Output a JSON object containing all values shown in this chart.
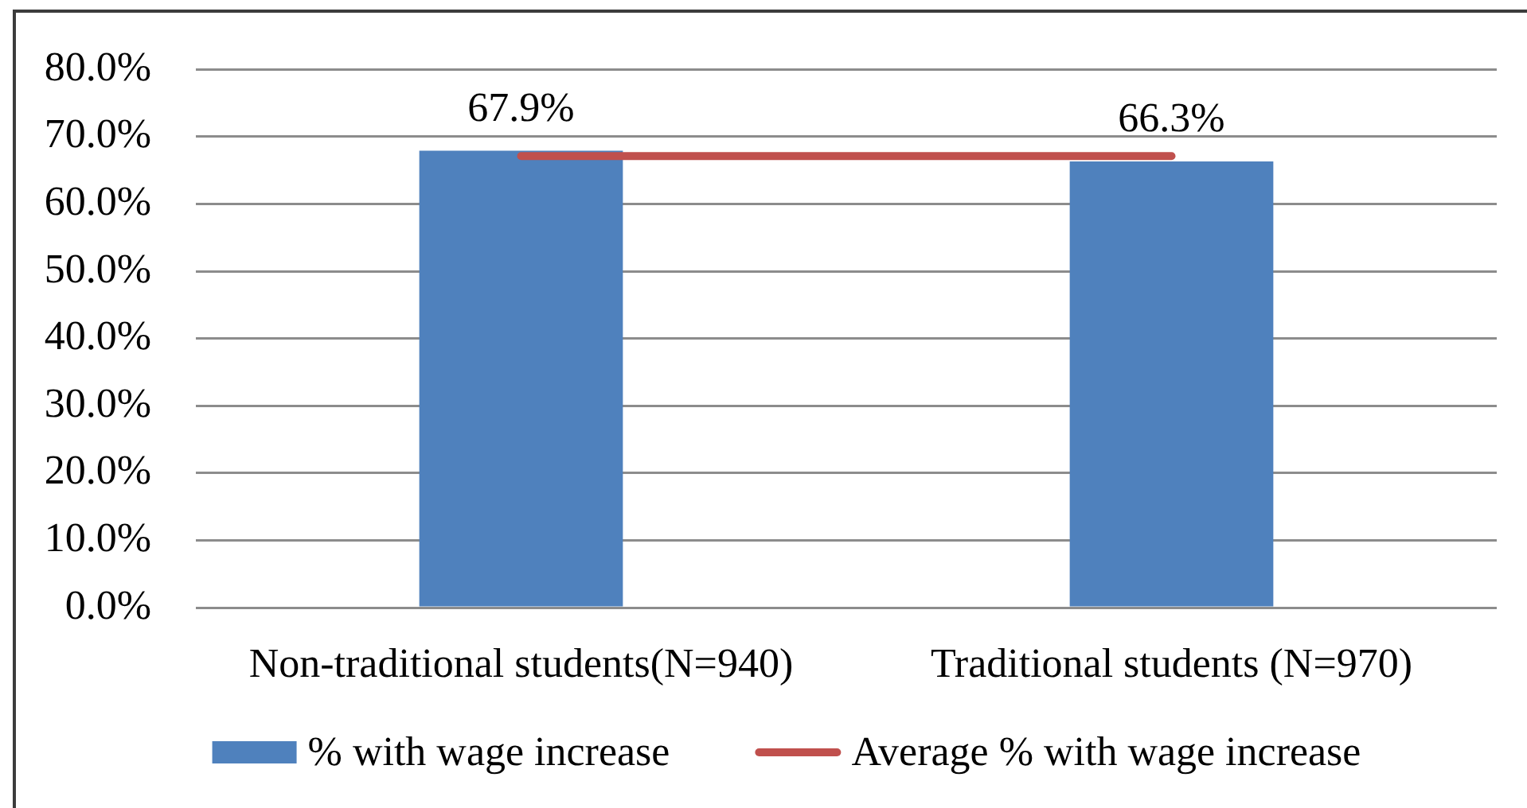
{
  "chart_data": {
    "type": "bar",
    "categories": [
      "Non-traditional students(N=940)",
      "Traditional students (N=970)"
    ],
    "series": [
      {
        "name": "% with wage increase",
        "color": "#4f81bd",
        "values": [
          67.9,
          66.3
        ],
        "value_labels": [
          "67.9%",
          "66.3%"
        ]
      },
      {
        "name": "Average % with wage increase",
        "type": "line",
        "color": "#c0504d",
        "values": [
          67.1,
          67.1
        ]
      }
    ],
    "ylim": [
      0,
      80
    ],
    "yticks": [
      {
        "value": 0,
        "label": "0.0%"
      },
      {
        "value": 10,
        "label": "10.0%"
      },
      {
        "value": 20,
        "label": "20.0%"
      },
      {
        "value": 30,
        "label": "30.0%"
      },
      {
        "value": 40,
        "label": "40.0%"
      },
      {
        "value": 50,
        "label": "50.0%"
      },
      {
        "value": 60,
        "label": "60.0%"
      },
      {
        "value": 70,
        "label": "70.0%"
      },
      {
        "value": 80,
        "label": "80.0%"
      }
    ],
    "grid": "y",
    "legend": "bottom",
    "marker": "none"
  }
}
